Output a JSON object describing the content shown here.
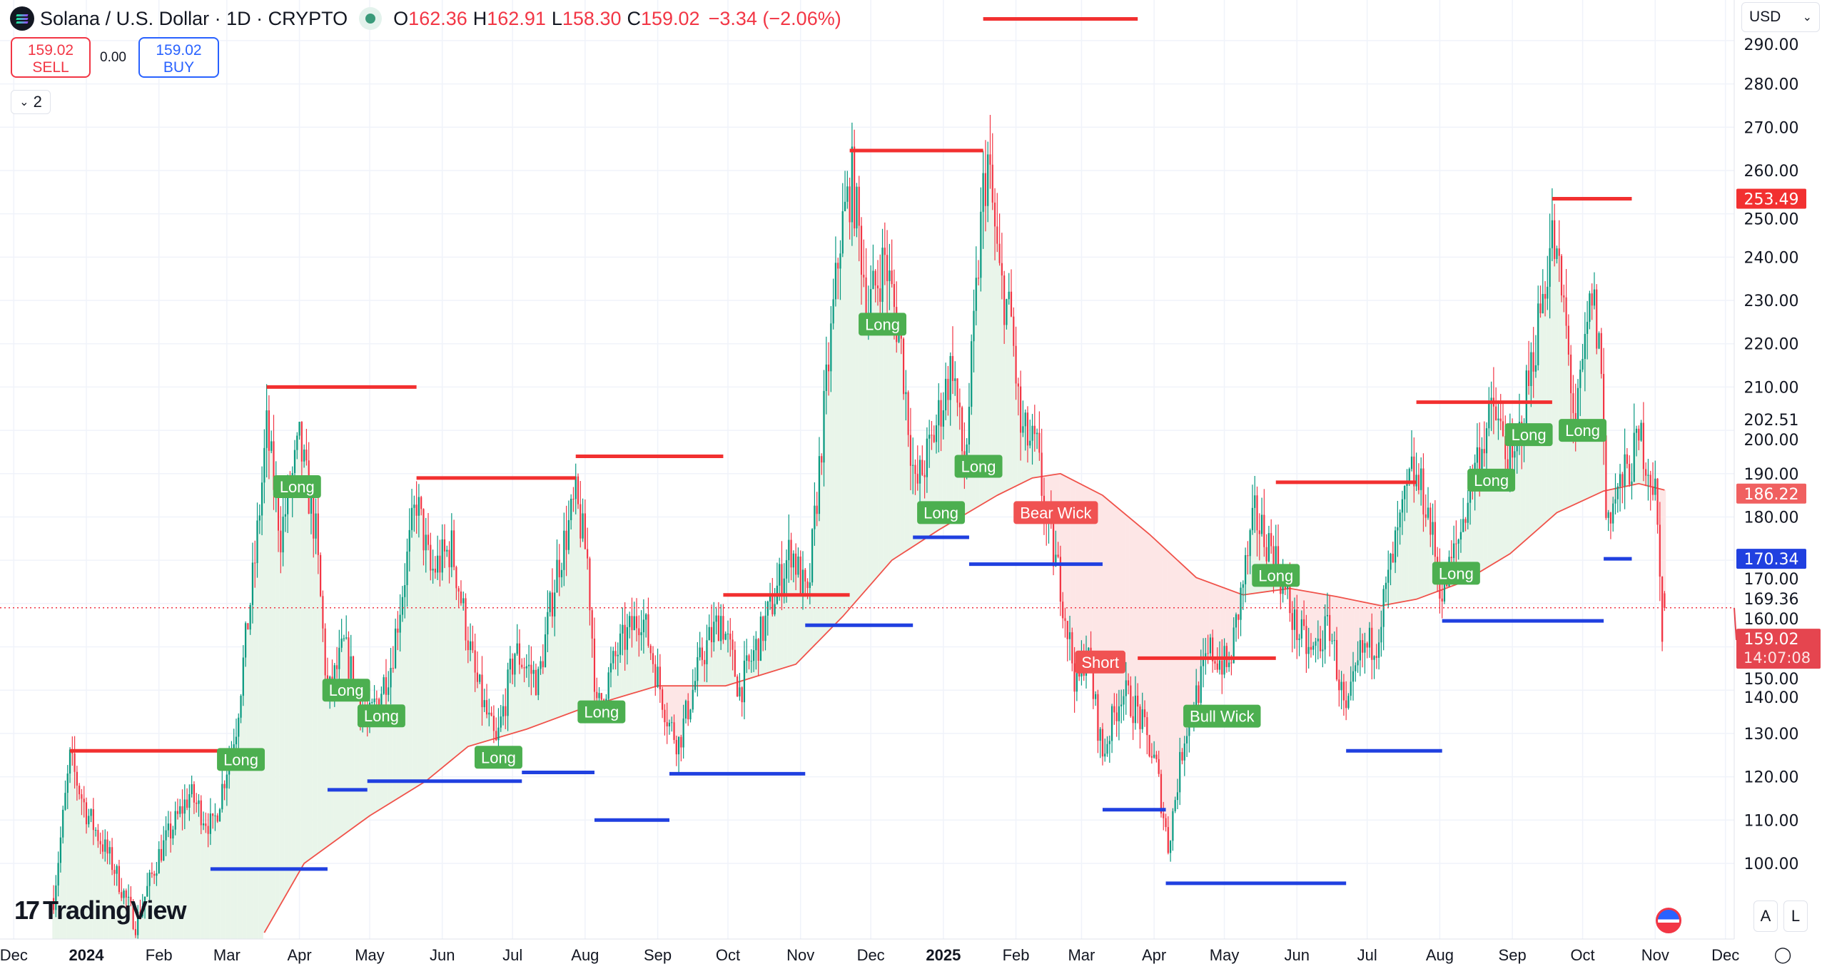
{
  "header": {
    "symbol_title": "Solana / U.S. Dollar · 1D · CRYPTO",
    "ohlc": {
      "o_label": "O",
      "o": "162.36",
      "h_label": "H",
      "h": "162.91",
      "l_label": "L",
      "l": "158.30",
      "c_label": "C",
      "c": "159.02",
      "change": "−3.34 (−2.06%)"
    },
    "sell": {
      "price": "159.02",
      "label": "SELL"
    },
    "spread": "0.00",
    "buy": {
      "price": "159.02",
      "label": "BUY"
    },
    "collapse_count": "2"
  },
  "currency": "USD",
  "branding": "TradingView",
  "scale_buttons": {
    "auto": "A",
    "log": "L"
  },
  "colors": {
    "up": "#089981",
    "down": "#f23645",
    "resistance": "#f23030",
    "support": "#2040e0",
    "ema": "#f0524a",
    "fill_up": "#e9f5ea",
    "fill_down": "#fde6e6",
    "long_label": "#4caf50",
    "short_label": "#f05252"
  },
  "chart_data": {
    "type": "candlestick",
    "ylim": [
      92,
      292
    ],
    "grid": true,
    "y_ticks": [
      "100.00",
      "110.00",
      "120.00",
      "130.00",
      "140.00",
      "150.00",
      "160.00",
      "170.00",
      "180.00",
      "190.00",
      "200.00",
      "210.00",
      "220.00",
      "230.00",
      "240.00",
      "250.00",
      "260.00",
      "270.00",
      "280.00",
      "290.00"
    ],
    "x_ticks": [
      {
        "date": "2023-12-01",
        "label": "Dec"
      },
      {
        "date": "2024-01-01",
        "label": "2024",
        "bold": true
      },
      {
        "date": "2024-02-01",
        "label": "Feb"
      },
      {
        "date": "2024-03-01",
        "label": "Mar"
      },
      {
        "date": "2024-04-01",
        "label": "Apr"
      },
      {
        "date": "2024-05-01",
        "label": "May"
      },
      {
        "date": "2024-06-01",
        "label": "Jun"
      },
      {
        "date": "2024-07-01",
        "label": "Jul"
      },
      {
        "date": "2024-08-01",
        "label": "Aug"
      },
      {
        "date": "2024-09-01",
        "label": "Sep"
      },
      {
        "date": "2024-10-01",
        "label": "Oct"
      },
      {
        "date": "2024-11-01",
        "label": "Nov"
      },
      {
        "date": "2024-12-01",
        "label": "Dec"
      },
      {
        "date": "2025-01-01",
        "label": "2025",
        "bold": true
      },
      {
        "date": "2025-02-01",
        "label": "Feb"
      },
      {
        "date": "2025-03-01",
        "label": "Mar"
      },
      {
        "date": "2025-04-01",
        "label": "Apr"
      },
      {
        "date": "2025-05-01",
        "label": "May"
      },
      {
        "date": "2025-06-01",
        "label": "Jun"
      },
      {
        "date": "2025-07-01",
        "label": "Jul"
      },
      {
        "date": "2025-08-01",
        "label": "Aug"
      },
      {
        "date": "2025-09-01",
        "label": "Sep"
      },
      {
        "date": "2025-10-01",
        "label": "Oct"
      },
      {
        "date": "2025-11-01",
        "label": "Nov"
      },
      {
        "date": "2025-12-01",
        "label": "Dec"
      }
    ],
    "close_path": [
      [
        "2023-12-18",
        92
      ],
      [
        "2023-12-25",
        124
      ],
      [
        "2024-01-01",
        112
      ],
      [
        "2024-01-12",
        100
      ],
      [
        "2024-01-22",
        86
      ],
      [
        "2024-02-01",
        102
      ],
      [
        "2024-02-14",
        116
      ],
      [
        "2024-02-24",
        108
      ],
      [
        "2024-03-05",
        132
      ],
      [
        "2024-03-13",
        170
      ],
      [
        "2024-03-18",
        200
      ],
      [
        "2024-03-24",
        176
      ],
      [
        "2024-04-01",
        197
      ],
      [
        "2024-04-08",
        176
      ],
      [
        "2024-04-13",
        138
      ],
      [
        "2024-04-20",
        150
      ],
      [
        "2024-04-30",
        132
      ],
      [
        "2024-05-10",
        146
      ],
      [
        "2024-05-21",
        184
      ],
      [
        "2024-05-27",
        167
      ],
      [
        "2024-06-05",
        173
      ],
      [
        "2024-06-15",
        143
      ],
      [
        "2024-06-24",
        127
      ],
      [
        "2024-07-02",
        149
      ],
      [
        "2024-07-12",
        142
      ],
      [
        "2024-07-20",
        168
      ],
      [
        "2024-07-28",
        184
      ],
      [
        "2024-08-02",
        170
      ],
      [
        "2024-08-06",
        135
      ],
      [
        "2024-08-15",
        149
      ],
      [
        "2024-08-25",
        158
      ],
      [
        "2024-09-06",
        132
      ],
      [
        "2024-09-10",
        128
      ],
      [
        "2024-09-20",
        148
      ],
      [
        "2024-09-28",
        157
      ],
      [
        "2024-10-06",
        140
      ],
      [
        "2024-10-16",
        154
      ],
      [
        "2024-10-28",
        173
      ],
      [
        "2024-11-04",
        160
      ],
      [
        "2024-11-12",
        210
      ],
      [
        "2024-11-18",
        245
      ],
      [
        "2024-11-23",
        258
      ],
      [
        "2024-11-30",
        228
      ],
      [
        "2024-12-07",
        240
      ],
      [
        "2024-12-14",
        219
      ],
      [
        "2024-12-20",
        186
      ],
      [
        "2024-12-27",
        197
      ],
      [
        "2025-01-05",
        216
      ],
      [
        "2025-01-10",
        190
      ],
      [
        "2025-01-18",
        255
      ],
      [
        "2025-01-20",
        262
      ],
      [
        "2025-01-25",
        235
      ],
      [
        "2025-01-30",
        225
      ],
      [
        "2025-02-03",
        200
      ],
      [
        "2025-02-10",
        195
      ],
      [
        "2025-02-14",
        178
      ],
      [
        "2025-02-20",
        165
      ],
      [
        "2025-02-27",
        140
      ],
      [
        "2025-03-03",
        150
      ],
      [
        "2025-03-10",
        125
      ],
      [
        "2025-03-18",
        140
      ],
      [
        "2025-03-25",
        135
      ],
      [
        "2025-04-02",
        122
      ],
      [
        "2025-04-07",
        104
      ],
      [
        "2025-04-14",
        130
      ],
      [
        "2025-04-25",
        149
      ],
      [
        "2025-05-03",
        145
      ],
      [
        "2025-05-09",
        165
      ],
      [
        "2025-05-14",
        180
      ],
      [
        "2025-05-22",
        172
      ],
      [
        "2025-05-31",
        155
      ],
      [
        "2025-06-07",
        148
      ],
      [
        "2025-06-15",
        155
      ],
      [
        "2025-06-22",
        133
      ],
      [
        "2025-06-28",
        148
      ],
      [
        "2025-07-05",
        152
      ],
      [
        "2025-07-11",
        168
      ],
      [
        "2025-07-20",
        190
      ],
      [
        "2025-07-26",
        184
      ],
      [
        "2025-08-02",
        162
      ],
      [
        "2025-08-09",
        175
      ],
      [
        "2025-08-16",
        192
      ],
      [
        "2025-08-24",
        205
      ],
      [
        "2025-09-01",
        190
      ],
      [
        "2025-09-10",
        218
      ],
      [
        "2025-09-18",
        245
      ],
      [
        "2025-09-23",
        228
      ],
      [
        "2025-09-28",
        200
      ],
      [
        "2025-10-05",
        232
      ],
      [
        "2025-10-09",
        215
      ],
      [
        "2025-10-11",
        180
      ],
      [
        "2025-10-18",
        188
      ],
      [
        "2025-10-26",
        198
      ],
      [
        "2025-11-01",
        186
      ],
      [
        "2025-11-04",
        155
      ],
      [
        "2025-11-05",
        159.02
      ]
    ],
    "last_candle": {
      "date": "2025-11-05",
      "open": 162.36,
      "high": 162.91,
      "low": 158.3,
      "close": 159.02
    },
    "ema": [
      [
        "2024-03-17",
        84
      ],
      [
        "2024-04-03",
        100
      ],
      [
        "2024-05-01",
        111
      ],
      [
        "2024-05-25",
        119
      ],
      [
        "2024-06-12",
        127
      ],
      [
        "2024-07-07",
        131
      ],
      [
        "2024-08-01",
        136
      ],
      [
        "2024-09-01",
        141
      ],
      [
        "2024-09-30",
        141
      ],
      [
        "2024-10-30",
        146
      ],
      [
        "2024-11-19",
        157
      ],
      [
        "2024-12-10",
        170
      ],
      [
        "2024-12-30",
        177
      ],
      [
        "2025-01-24",
        185
      ],
      [
        "2025-02-08",
        189
      ],
      [
        "2025-02-20",
        190
      ],
      [
        "2025-03-10",
        185
      ],
      [
        "2025-03-30",
        176
      ],
      [
        "2025-04-19",
        166
      ],
      [
        "2025-05-09",
        162
      ],
      [
        "2025-05-29",
        163.5
      ],
      [
        "2025-06-18",
        161.6
      ],
      [
        "2025-07-07",
        159.5
      ],
      [
        "2025-07-22",
        161
      ],
      [
        "2025-08-11",
        165
      ],
      [
        "2025-08-31",
        171.5
      ],
      [
        "2025-09-20",
        181
      ],
      [
        "2025-10-10",
        186
      ],
      [
        "2025-10-25",
        187.7
      ],
      [
        "2025-11-05",
        186.22
      ]
    ],
    "resistance_levels": [
      {
        "from": "2023-12-25",
        "to": "2024-03-17",
        "price": 126
      },
      {
        "from": "2024-03-18",
        "to": "2024-05-21",
        "price": 210
      },
      {
        "from": "2024-05-21",
        "to": "2024-07-28",
        "price": 189
      },
      {
        "from": "2024-07-28",
        "to": "2024-09-29",
        "price": 194
      },
      {
        "from": "2024-09-29",
        "to": "2024-11-22",
        "price": 162
      },
      {
        "from": "2024-11-22",
        "to": "2025-01-18",
        "price": 264.6
      },
      {
        "from": "2025-01-18",
        "to": "2025-03-25",
        "price": 295
      },
      {
        "from": "2025-03-25",
        "to": "2025-05-23",
        "price": 147.4
      },
      {
        "from": "2025-05-23",
        "to": "2025-07-22",
        "price": 188
      },
      {
        "from": "2025-07-22",
        "to": "2025-09-18",
        "price": 206.5
      },
      {
        "from": "2025-09-18",
        "to": "2025-10-22",
        "price": 253.49
      }
    ],
    "support_levels": [
      {
        "from": "2024-02-23",
        "to": "2024-04-13",
        "price": 98.7
      },
      {
        "from": "2024-04-13",
        "to": "2024-04-30",
        "price": 117
      },
      {
        "from": "2024-04-30",
        "to": "2024-07-05",
        "price": 119
      },
      {
        "from": "2024-07-05",
        "to": "2024-08-05",
        "price": 121
      },
      {
        "from": "2024-08-05",
        "to": "2024-09-06",
        "price": 110
      },
      {
        "from": "2024-09-06",
        "to": "2024-11-03",
        "price": 120.7
      },
      {
        "from": "2024-11-03",
        "to": "2024-12-19",
        "price": 155
      },
      {
        "from": "2024-12-19",
        "to": "2025-01-12",
        "price": 175.3
      },
      {
        "from": "2025-01-12",
        "to": "2025-03-10",
        "price": 169.1
      },
      {
        "from": "2025-03-10",
        "to": "2025-04-06",
        "price": 112.4
      },
      {
        "from": "2025-04-06",
        "to": "2025-06-22",
        "price": 95.4
      },
      {
        "from": "2025-06-22",
        "to": "2025-08-02",
        "price": 126
      },
      {
        "from": "2025-08-02",
        "to": "2025-10-10",
        "price": 156
      },
      {
        "from": "2025-10-10",
        "to": "2025-10-22",
        "price": 170.34
      }
    ],
    "signals": [
      {
        "date": "2024-03-07",
        "price": 124,
        "text": "Long",
        "side": "long"
      },
      {
        "date": "2024-03-31",
        "price": 187,
        "text": "Long",
        "side": "long"
      },
      {
        "date": "2024-04-21",
        "price": 140,
        "text": "Long",
        "side": "long"
      },
      {
        "date": "2024-05-06",
        "price": 138.5,
        "text": "Long",
        "side": "long"
      },
      {
        "date": "2024-06-25",
        "price": 124.5,
        "text": "Long",
        "side": "long"
      },
      {
        "date": "2024-08-08",
        "price": 135,
        "text": "Long",
        "side": "long"
      },
      {
        "date": "2024-12-06",
        "price": 224.5,
        "text": "Long",
        "side": "long"
      },
      {
        "date": "2024-12-31",
        "price": 181,
        "text": "Long",
        "side": "long"
      },
      {
        "date": "2025-01-16",
        "price": 191.7,
        "text": "Long",
        "side": "long"
      },
      {
        "date": "2025-02-18",
        "price": 181,
        "text": "Bear Wick",
        "side": "short"
      },
      {
        "date": "2025-03-09",
        "price": 146.5,
        "text": "Short",
        "side": "short"
      },
      {
        "date": "2025-04-30",
        "price": 134,
        "text": "Bull Wick",
        "side": "long"
      },
      {
        "date": "2025-05-23",
        "price": 166.5,
        "text": "Long",
        "side": "long"
      },
      {
        "date": "2025-08-08",
        "price": 167,
        "text": "Long",
        "side": "long"
      },
      {
        "date": "2025-08-23",
        "price": 188.5,
        "text": "Long",
        "side": "long"
      },
      {
        "date": "2025-09-08",
        "price": 199,
        "text": "Long",
        "side": "long"
      },
      {
        "date": "2025-10-01",
        "price": 200,
        "text": "Long",
        "side": "long"
      }
    ],
    "price_labels": [
      {
        "price": 253.49,
        "text": "253.49",
        "bg": "#f23030",
        "color": "#ffffff"
      },
      {
        "price": 202.51,
        "text": "202.51",
        "bg": "",
        "color": "#131722"
      },
      {
        "price": 186.22,
        "text": "186.22",
        "bg": "#f06060",
        "color": "#ffffff"
      },
      {
        "price": 170.34,
        "text": "170.34",
        "bg": "#2040e0",
        "color": "#ffffff"
      },
      {
        "price": 169.36,
        "text": "169.36",
        "bg": "",
        "color": "#131722"
      }
    ],
    "current_price": {
      "price": 159.02,
      "text": "159.02",
      "countdown": "14:07:08",
      "bg": "#e5454f"
    }
  }
}
